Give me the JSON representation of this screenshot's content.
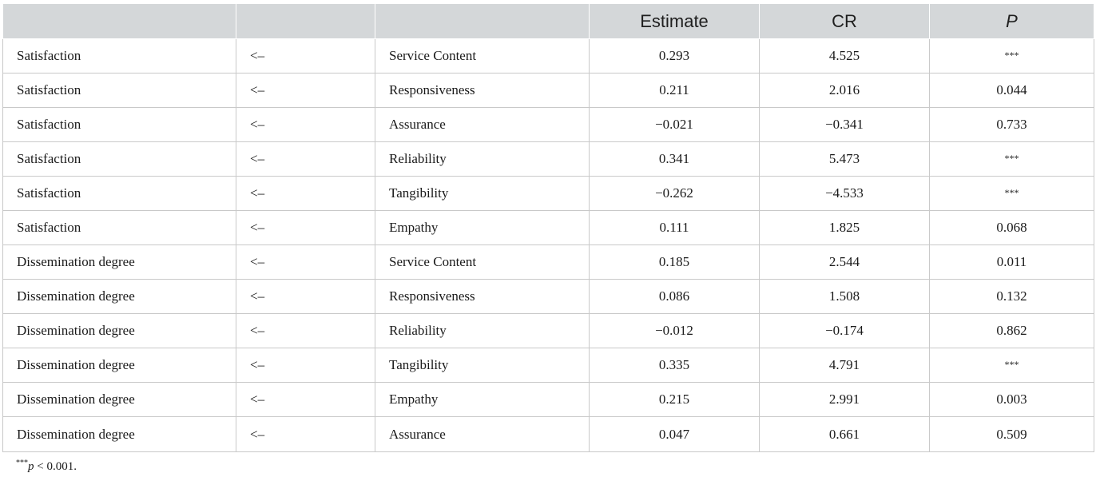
{
  "table": {
    "headers": [
      "",
      "",
      "",
      "Estimate",
      "CR",
      "P"
    ],
    "rows": [
      [
        "Satisfaction",
        "<–",
        "Service Content",
        "0.293",
        "4.525",
        "***"
      ],
      [
        "Satisfaction",
        "<–",
        "Responsiveness",
        "0.211",
        "2.016",
        "0.044"
      ],
      [
        "Satisfaction",
        "<–",
        "Assurance",
        "−0.021",
        "−0.341",
        "0.733"
      ],
      [
        "Satisfaction",
        "<–",
        "Reliability",
        "0.341",
        "5.473",
        "***"
      ],
      [
        "Satisfaction",
        "<–",
        "Tangibility",
        "−0.262",
        "−4.533",
        "***"
      ],
      [
        "Satisfaction",
        "<–",
        "Empathy",
        "0.111",
        "1.825",
        "0.068"
      ],
      [
        "Dissemination degree",
        "<–",
        "Service Content",
        "0.185",
        "2.544",
        "0.011"
      ],
      [
        "Dissemination degree",
        "<–",
        "Responsiveness",
        "0.086",
        "1.508",
        "0.132"
      ],
      [
        "Dissemination degree",
        "<–",
        "Reliability",
        "−0.012",
        "−0.174",
        "0.862"
      ],
      [
        "Dissemination degree",
        "<–",
        "Tangibility",
        "0.335",
        "4.791",
        "***"
      ],
      [
        "Dissemination degree",
        "<–",
        "Empathy",
        "0.215",
        "2.991",
        "0.003"
      ],
      [
        "Dissemination degree",
        "<–",
        "Assurance",
        "0.047",
        "0.661",
        "0.509"
      ]
    ]
  },
  "footnote": {
    "stars": "***",
    "p": "p",
    "text": " < 0.001."
  }
}
